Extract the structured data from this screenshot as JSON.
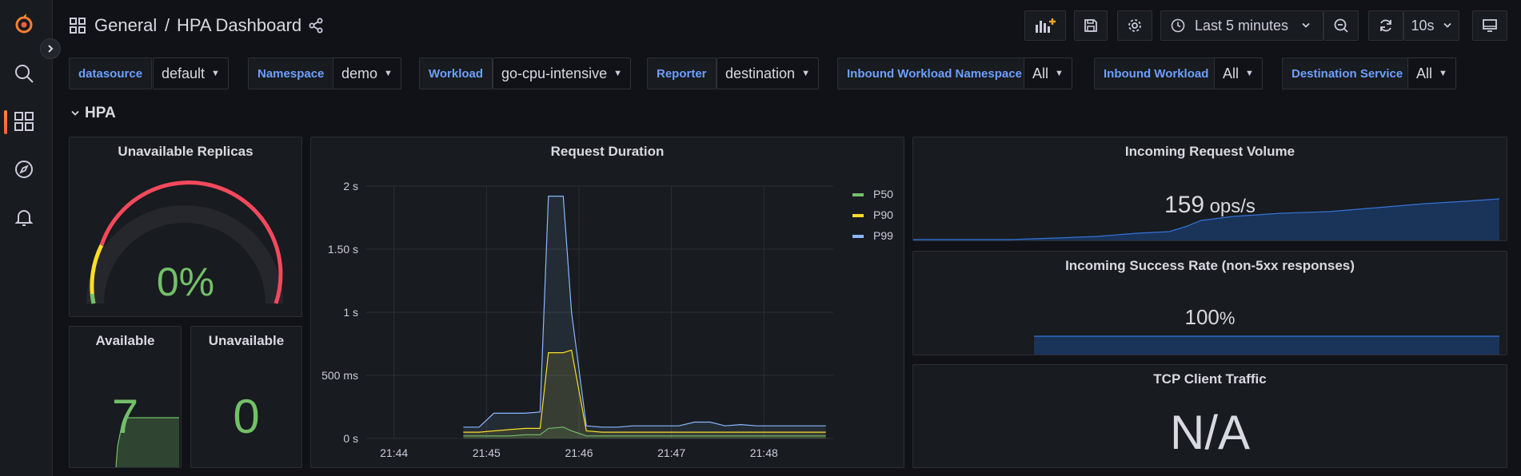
{
  "breadcrumb": {
    "folder": "General",
    "separator": "/",
    "title": "HPA Dashboard"
  },
  "toolbar": {
    "time_range": "Last 5 minutes",
    "refresh_interval": "10s"
  },
  "variables": [
    {
      "label": "datasource",
      "value": "default"
    },
    {
      "label": "Namespace",
      "value": "demo"
    },
    {
      "label": "Workload",
      "value": "go-cpu-intensive"
    },
    {
      "label": "Reporter",
      "value": "destination"
    },
    {
      "label": "Inbound Workload Namespace",
      "value": "All"
    },
    {
      "label": "Inbound Workload",
      "value": "All"
    },
    {
      "label": "Destination Service",
      "value": "All"
    }
  ],
  "row": {
    "title": "HPA"
  },
  "panels": {
    "unavailable_replicas": {
      "title": "Unavailable Replicas",
      "value": "0%",
      "gauge_fraction": 0.0
    },
    "available": {
      "title": "Available",
      "value": "7"
    },
    "unavailable": {
      "title": "Unavailable",
      "value": "0"
    },
    "request_duration": {
      "title": "Request Duration"
    },
    "incoming_volume": {
      "title": "Incoming Request Volume",
      "value": "159",
      "unit": "ops/s"
    },
    "success_rate": {
      "title": "Incoming Success Rate (non-5xx responses)",
      "value": "100",
      "unit": "%"
    },
    "tcp_client": {
      "title": "TCP Client Traffic",
      "value": "N/A"
    }
  },
  "colors": {
    "green": "#73bf69",
    "yellow": "#fade2a",
    "cyan": "#8ab8ff",
    "accent": "#f55f3e",
    "blue": "#6e9fff"
  },
  "chart_data": {
    "type": "line",
    "title": "Request Duration",
    "x_ticks": [
      "21:44",
      "21:45",
      "21:46",
      "21:47",
      "21:48"
    ],
    "y_ticks": [
      "0 s",
      "500 ms",
      "1 s",
      "1.50 s",
      "2 s"
    ],
    "ylim": [
      0,
      2
    ],
    "legend_position": "right",
    "x_minutes": [
      44.75,
      44.92,
      45.08,
      45.25,
      45.42,
      45.58,
      45.67,
      45.83,
      45.92,
      46.08,
      46.25,
      46.42,
      46.58,
      46.75,
      46.92,
      47.08,
      47.25,
      47.42,
      47.58,
      47.75,
      47.92,
      48.08,
      48.25,
      48.42,
      48.67
    ],
    "series": [
      {
        "name": "P50",
        "color": "#73bf69",
        "values": [
          0.02,
          0.02,
          0.02,
          0.02,
          0.03,
          0.03,
          0.08,
          0.09,
          0.06,
          0.02,
          0.02,
          0.02,
          0.02,
          0.02,
          0.02,
          0.02,
          0.02,
          0.02,
          0.02,
          0.02,
          0.02,
          0.02,
          0.02,
          0.02,
          0.02
        ]
      },
      {
        "name": "P90",
        "color": "#fade2a",
        "values": [
          0.05,
          0.05,
          0.06,
          0.07,
          0.08,
          0.08,
          0.68,
          0.68,
          0.7,
          0.06,
          0.05,
          0.05,
          0.05,
          0.05,
          0.05,
          0.05,
          0.05,
          0.05,
          0.05,
          0.05,
          0.05,
          0.05,
          0.05,
          0.05,
          0.05
        ]
      },
      {
        "name": "P99",
        "color": "#8ab8ff",
        "values": [
          0.09,
          0.09,
          0.2,
          0.2,
          0.2,
          0.21,
          1.92,
          1.92,
          1.0,
          0.1,
          0.09,
          0.09,
          0.1,
          0.1,
          0.1,
          0.1,
          0.13,
          0.13,
          0.1,
          0.11,
          0.1,
          0.1,
          0.1,
          0.1,
          0.1
        ]
      }
    ]
  }
}
